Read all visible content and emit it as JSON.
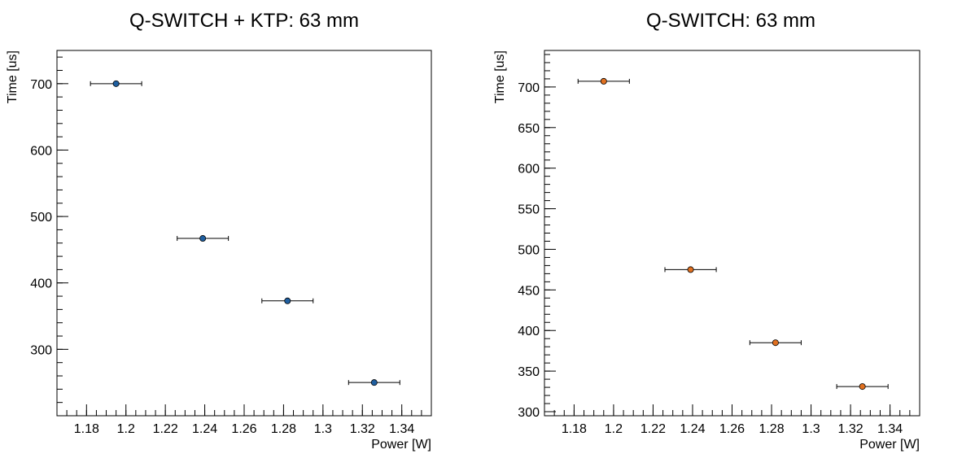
{
  "chart_data": [
    {
      "type": "scatter",
      "title": "Q-SWITCH + KTP: 63 mm",
      "xlabel": "Power [W]",
      "ylabel": "Time [us]",
      "xlim": [
        1.165,
        1.355
      ],
      "ylim": [
        200,
        750
      ],
      "xticks": [
        1.18,
        1.2,
        1.22,
        1.24,
        1.26,
        1.28,
        1.3,
        1.32,
        1.34
      ],
      "xtick_labels": [
        "1.18",
        "1.2",
        "1.22",
        "1.24",
        "1.26",
        "1.28",
        "1.3",
        "1.32",
        "1.34"
      ],
      "yticks": [
        300,
        400,
        500,
        600,
        700
      ],
      "ytick_labels": [
        "300",
        "400",
        "500",
        "600",
        "700"
      ],
      "marker_color": "#1f5fa0",
      "points": [
        {
          "x": 1.195,
          "y": 700,
          "xerr": 0.013
        },
        {
          "x": 1.239,
          "y": 467,
          "xerr": 0.013
        },
        {
          "x": 1.282,
          "y": 373,
          "xerr": 0.013
        },
        {
          "x": 1.326,
          "y": 250,
          "xerr": 0.013
        }
      ]
    },
    {
      "type": "scatter",
      "title": "Q-SWITCH: 63 mm",
      "xlabel": "Power [W]",
      "ylabel": "Time [us]",
      "xlim": [
        1.165,
        1.355
      ],
      "ylim": [
        295,
        745
      ],
      "xticks": [
        1.18,
        1.2,
        1.22,
        1.24,
        1.26,
        1.28,
        1.3,
        1.32,
        1.34
      ],
      "xtick_labels": [
        "1.18",
        "1.2",
        "1.22",
        "1.24",
        "1.26",
        "1.28",
        "1.3",
        "1.32",
        "1.34"
      ],
      "yticks": [
        300,
        350,
        400,
        450,
        500,
        550,
        600,
        650,
        700
      ],
      "ytick_labels": [
        "300",
        "350",
        "400",
        "450",
        "500",
        "550",
        "600",
        "650",
        "700"
      ],
      "marker_color": "#e07020",
      "points": [
        {
          "x": 1.195,
          "y": 707,
          "xerr": 0.013
        },
        {
          "x": 1.239,
          "y": 475,
          "xerr": 0.013
        },
        {
          "x": 1.282,
          "y": 385,
          "xerr": 0.013
        },
        {
          "x": 1.326,
          "y": 331,
          "xerr": 0.013
        }
      ]
    }
  ]
}
